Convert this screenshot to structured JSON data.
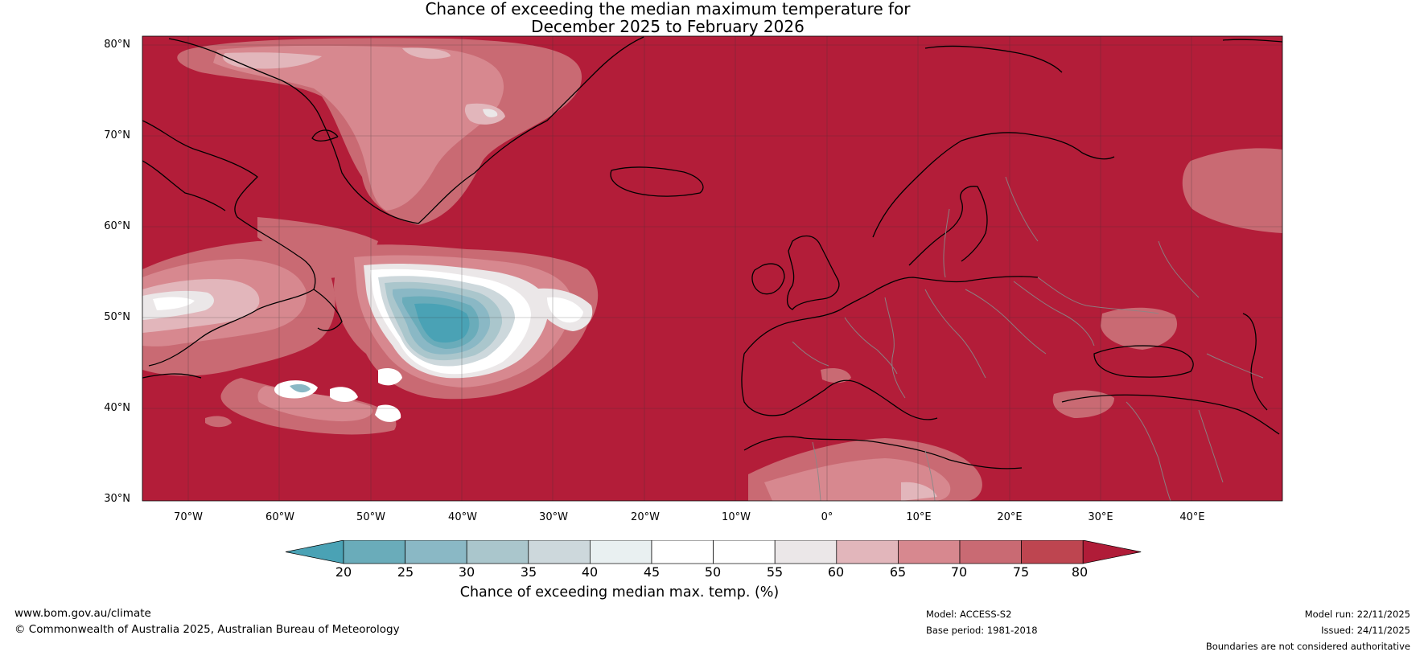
{
  "title_line1": "Chance of exceeding the median maximum temperature for",
  "title_line2": "December 2025 to February 2026",
  "lat_labels": [
    "80°N",
    "70°N",
    "60°N",
    "50°N",
    "40°N",
    "30°N"
  ],
  "lon_labels": [
    "70°W",
    "60°W",
    "50°W",
    "40°W",
    "30°W",
    "20°W",
    "10°W",
    "0°",
    "10°E",
    "20°E",
    "30°E",
    "40°E"
  ],
  "colorbar": {
    "label": "Chance of exceeding median max. temp. (%)",
    "ticks": [
      "20",
      "25",
      "30",
      "35",
      "40",
      "45",
      "50",
      "55",
      "60",
      "65",
      "70",
      "75",
      "80"
    ],
    "colors": [
      "#4aa2b5",
      "#6aacba",
      "#8ab8c5",
      "#aac6cc",
      "#cdd8dc",
      "#e9f0f1",
      "#ffffff",
      "#ffffff",
      "#ebe7e8",
      "#e2b6bb",
      "#d7888f",
      "#c96a73",
      "#be4550",
      "#b01c38"
    ]
  },
  "map": {
    "dominant_color": "#b31d39",
    "legend_min": 20,
    "legend_max": 80
  },
  "footer": {
    "website": "www.bom.gov.au/climate",
    "copyright": "© Commonwealth of Australia 2025, Australian Bureau of Meteorology",
    "model": "Model: ACCESS-S2",
    "base_period": "Base period: 1981-2018",
    "model_run": "Model run: 22/11/2025",
    "issued": "Issued: 24/11/2025",
    "disclaimer": "Boundaries are not considered authoritative"
  }
}
